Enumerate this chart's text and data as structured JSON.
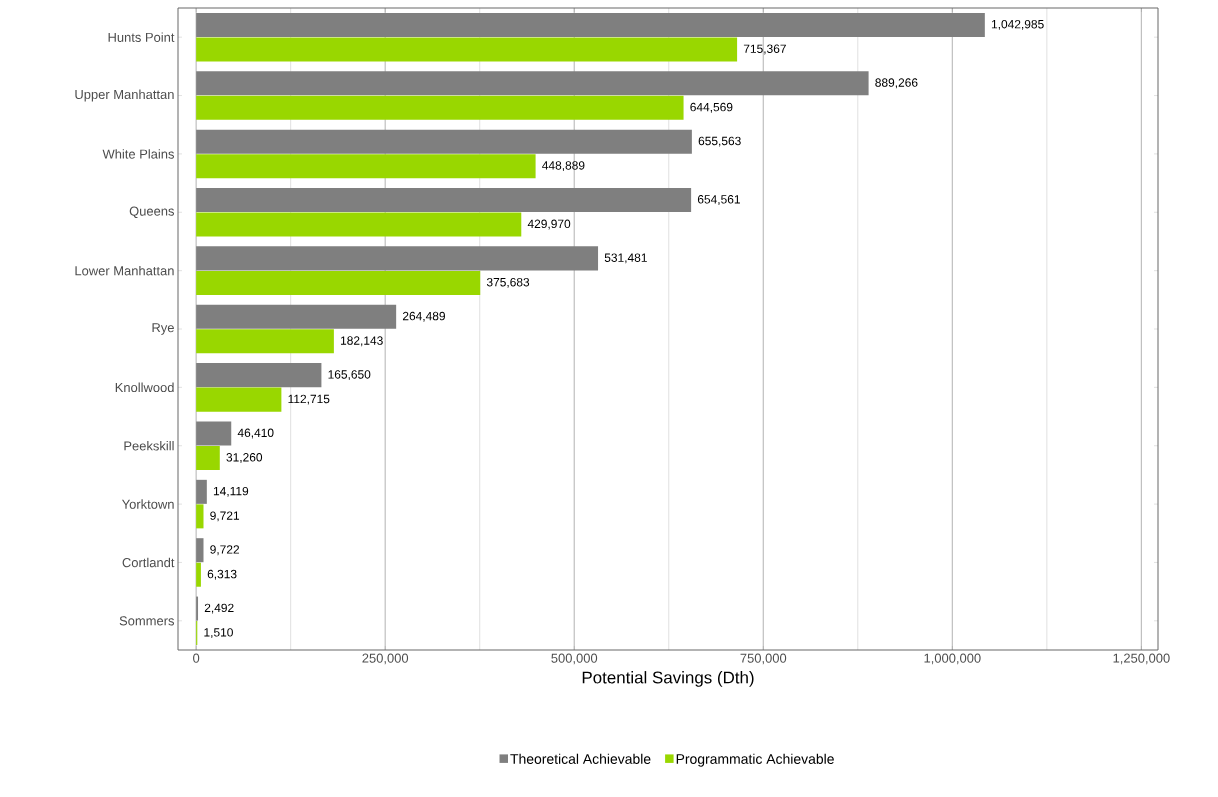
{
  "chart_data": {
    "type": "bar",
    "orientation": "horizontal",
    "xlabel": "Potential Savings (Dth)",
    "categories": [
      "Hunts Point",
      "Upper Manhattan",
      "White Plains",
      "Queens",
      "Lower Manhattan",
      "Rye",
      "Knollwood",
      "Peekskill",
      "Yorktown",
      "Cortlandt",
      "Sommers"
    ],
    "series": [
      {
        "name": "Theoretical Achievable",
        "color": "#7f7f7f",
        "values": [
          1042985,
          889266,
          655563,
          654561,
          531481,
          264489,
          165650,
          46410,
          14119,
          9722,
          2492
        ],
        "value_labels": [
          "1,042,985",
          "889,266",
          "655,563",
          "654,561",
          "531,481",
          "264,489",
          "165,650",
          "46,410",
          "14,119",
          "9,722",
          "2,492"
        ]
      },
      {
        "name": "Programmatic Achievable",
        "color": "#99d700",
        "values": [
          715367,
          644569,
          448889,
          429970,
          375683,
          182143,
          112715,
          31260,
          9721,
          6313,
          1510
        ],
        "value_labels": [
          "715,367",
          "644,569",
          "448,889",
          "429,970",
          "375,683",
          "182,143",
          "112,715",
          "31,260",
          "9,721",
          "6,313",
          "1,510"
        ]
      }
    ],
    "xlim": [
      -24000,
      1272000
    ],
    "xticks": [
      {
        "value": 0,
        "label": "0"
      },
      {
        "value": 250000,
        "label": "250,000"
      },
      {
        "value": 500000,
        "label": "500,000"
      },
      {
        "value": 750000,
        "label": "750,000"
      },
      {
        "value": 1000000,
        "label": "1,000,000"
      },
      {
        "value": 1250000,
        "label": "1,250,000"
      }
    ],
    "grid": "x",
    "legend": "bottom"
  }
}
